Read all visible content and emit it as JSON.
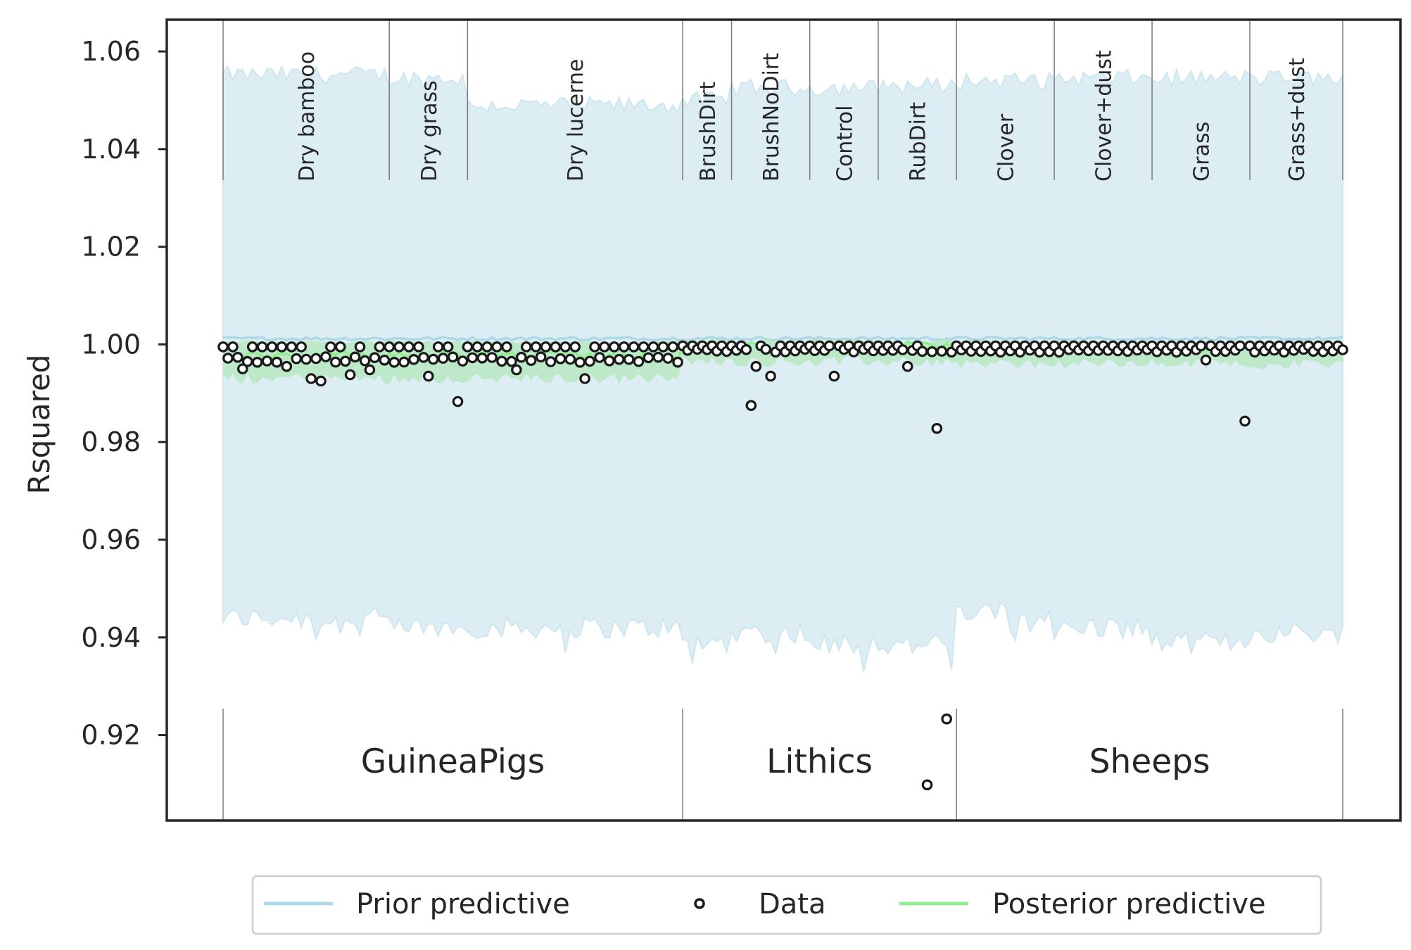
{
  "chart_data": {
    "type": "scatter",
    "ylabel": "Rsquared",
    "xlabel": "",
    "ylim": [
      0.9025,
      1.0665
    ],
    "yticks": [
      0.92,
      0.94,
      0.96,
      0.98,
      1.0,
      1.02,
      1.04,
      1.06
    ],
    "ytick_labels": [
      "0.92",
      "0.94",
      "0.96",
      "0.98",
      "1.00",
      "1.02",
      "1.04",
      "1.06"
    ],
    "n_points": 230,
    "grid": false,
    "legend_placement": "bottom-center",
    "colors": {
      "prior_band": "#dcedf4",
      "prior_line": "#add8e6",
      "posterior_band": "#b8e7c0",
      "posterior_line": "#90ee90",
      "data_marker": "#1a1a1a",
      "axes": "#262626",
      "divider": "#7a7a7a"
    },
    "groups": [
      {
        "label": "GuineaPigs",
        "start": 0,
        "end": 94
      },
      {
        "label": "Lithics",
        "start": 94,
        "end": 150
      },
      {
        "label": "Sheeps",
        "start": 150,
        "end": 229
      }
    ],
    "subgroups": [
      {
        "label": "Dry bamboo",
        "start": 0,
        "end": 34
      },
      {
        "label": "Dry grass",
        "start": 34,
        "end": 50
      },
      {
        "label": "Dry lucerne",
        "start": 50,
        "end": 94
      },
      {
        "label": "BrushDirt",
        "start": 94,
        "end": 104
      },
      {
        "label": "BrushNoDirt",
        "start": 104,
        "end": 120
      },
      {
        "label": "Control",
        "start": 120,
        "end": 134
      },
      {
        "label": "RubDirt",
        "start": 134,
        "end": 150
      },
      {
        "label": "Clover",
        "start": 150,
        "end": 170
      },
      {
        "label": "Clover+dust",
        "start": 170,
        "end": 190
      },
      {
        "label": "Grass",
        "start": 190,
        "end": 210
      },
      {
        "label": "Grass+dust",
        "start": 210,
        "end": 229
      }
    ],
    "prior_band": {
      "upper_by_subgroup": [
        1.0552,
        1.0545,
        1.049,
        1.05,
        1.0525,
        1.0525,
        1.053,
        1.054,
        1.0545,
        1.0545,
        1.0545
      ],
      "lower_by_subgroup": [
        0.944,
        0.942,
        0.942,
        0.939,
        0.941,
        0.939,
        0.9385,
        0.945,
        0.942,
        0.939,
        0.941
      ],
      "mean": 1.0012
    },
    "posterior_band": {
      "lower_by_group": [
        0.993,
        0.9965,
        0.996
      ],
      "upper_by_group": [
        1.0005,
        1.0008,
        1.0005
      ]
    },
    "data_outliers": [
      {
        "x": 4,
        "y": 0.995
      },
      {
        "x": 13,
        "y": 0.9955
      },
      {
        "x": 18,
        "y": 0.993
      },
      {
        "x": 20,
        "y": 0.9925
      },
      {
        "x": 26,
        "y": 0.9938
      },
      {
        "x": 30,
        "y": 0.9948
      },
      {
        "x": 42,
        "y": 0.9935
      },
      {
        "x": 48,
        "y": 0.9883
      },
      {
        "x": 60,
        "y": 0.9948
      },
      {
        "x": 74,
        "y": 0.993
      },
      {
        "x": 108,
        "y": 0.9875
      },
      {
        "x": 109,
        "y": 0.9955
      },
      {
        "x": 112,
        "y": 0.9935
      },
      {
        "x": 125,
        "y": 0.9935
      },
      {
        "x": 140,
        "y": 0.9955
      },
      {
        "x": 144,
        "y": 0.9098
      },
      {
        "x": 146,
        "y": 0.9828
      },
      {
        "x": 148,
        "y": 0.9233
      },
      {
        "x": 201,
        "y": 0.9968
      },
      {
        "x": 209,
        "y": 0.9843
      }
    ]
  },
  "legend": {
    "prior_label": "Prior predictive",
    "data_label": "Data",
    "posterior_label": "Posterior predictive"
  }
}
